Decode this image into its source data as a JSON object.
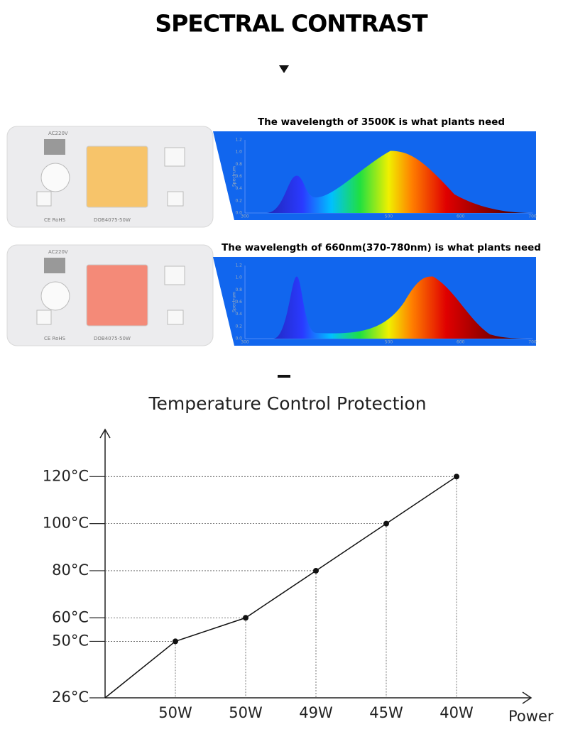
{
  "header": {
    "title": "SPECTRAL CONTRAST"
  },
  "spectra": [
    {
      "caption": "The wavelength of 3500K is what plants need",
      "chip_rating": "AC220V",
      "chip_marks": "CE RoHS",
      "chip_model": "DOB4075-50W"
    },
    {
      "caption": "The wavelength of 660nm(370-780nm) is what plants need",
      "chip_rating": "AC220V",
      "chip_marks": "CE RoHS",
      "chip_model": "DOB4075-50W"
    }
  ],
  "spectrum_axis": {
    "y_label": "Spectrum",
    "yticks": [
      "0.0",
      "0.2",
      "0.4",
      "0.6",
      "0.8",
      "1.0",
      "1.2"
    ],
    "xticks": [
      "300",
      "500",
      "600",
      "700"
    ]
  },
  "chart_data": {
    "type": "line",
    "title": "Temperature Control Protection",
    "x_label": "Power",
    "categories": [
      null,
      "50W",
      "50W",
      "49W",
      "45W",
      "40W"
    ],
    "values": [
      26,
      50,
      60,
      80,
      100,
      120
    ],
    "color": "#111111",
    "ylim": [
      26,
      140
    ],
    "yticks": [
      {
        "value": 26,
        "label": "26°C"
      },
      {
        "value": 50,
        "label": "50°C"
      },
      {
        "value": 60,
        "label": "60°C"
      },
      {
        "value": 80,
        "label": "80°C"
      },
      {
        "value": 100,
        "label": "100°C"
      },
      {
        "value": 120,
        "label": "120°C"
      }
    ]
  }
}
